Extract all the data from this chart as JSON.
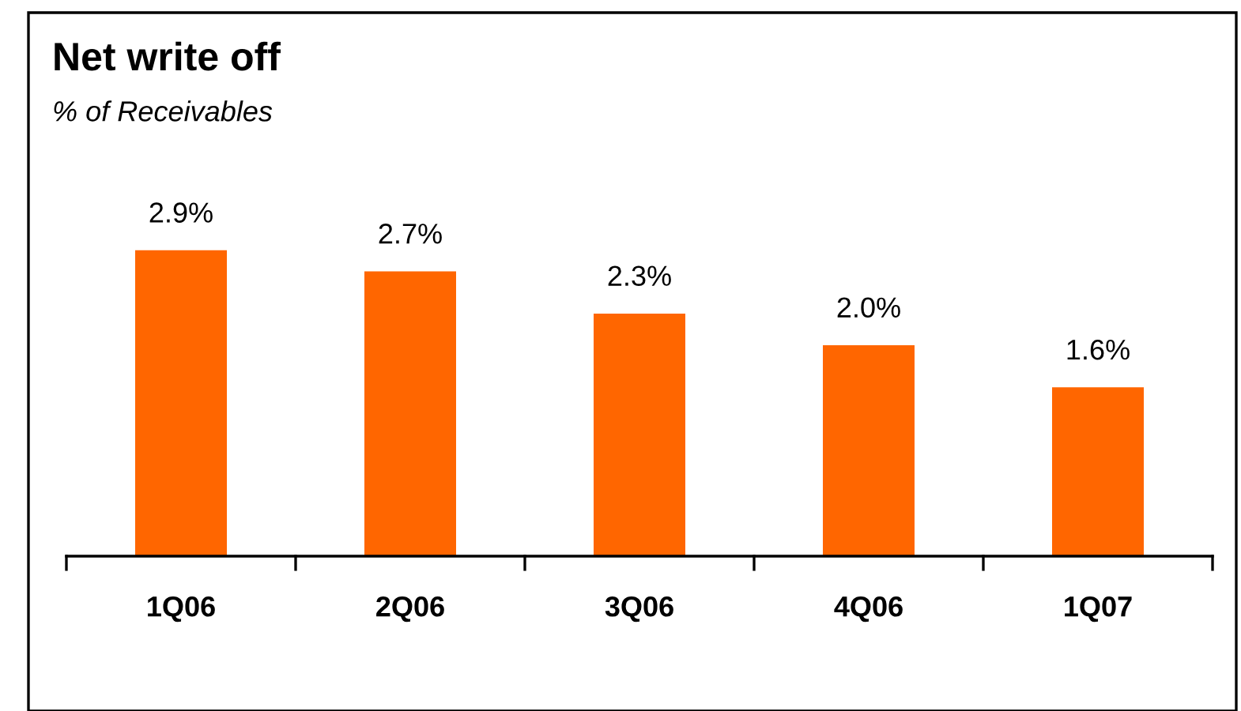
{
  "chart_data": {
    "type": "bar",
    "title": "Net write off",
    "subtitle": "% of Receivables",
    "categories": [
      "1Q06",
      "2Q06",
      "3Q06",
      "4Q06",
      "1Q07"
    ],
    "values": [
      2.9,
      2.7,
      2.3,
      2.0,
      1.6
    ],
    "value_labels": [
      "2.9%",
      "2.7%",
      "2.3%",
      "2.0%",
      "1.6%"
    ],
    "color": "#ff6600",
    "grid": false,
    "legend": false
  }
}
